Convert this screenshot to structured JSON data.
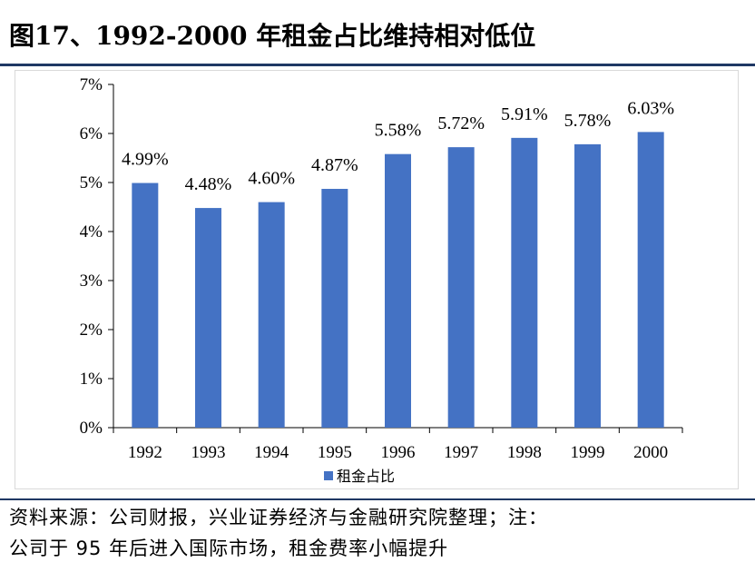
{
  "header": {
    "title": "图17、1992-2000 年租金占比维持相对低位"
  },
  "chart_data": {
    "type": "bar",
    "title": "",
    "categories": [
      "1992",
      "1993",
      "1994",
      "1995",
      "1996",
      "1997",
      "1998",
      "1999",
      "2000"
    ],
    "series": [
      {
        "name": "租金占比",
        "values": [
          4.99,
          4.48,
          4.6,
          4.87,
          5.58,
          5.72,
          5.91,
          5.78,
          6.03
        ],
        "data_labels": [
          "4.99%",
          "4.48%",
          "4.60%",
          "4.87%",
          "5.58%",
          "5.72%",
          "5.91%",
          "5.78%",
          "6.03%"
        ],
        "color": "#4472c4"
      }
    ],
    "ylim": [
      0,
      7
    ],
    "yticks": [
      "0%",
      "1%",
      "2%",
      "3%",
      "4%",
      "5%",
      "6%",
      "7%"
    ],
    "xlabel": "",
    "ylabel": "",
    "legend_position": "bottom",
    "grid": false
  },
  "footer": {
    "source_line1": "资料来源：公司财报，兴业证券经济与金融研究院整理；注：",
    "source_line2": "公司于 95 年后进入国际市场，租金费率小幅提升"
  },
  "colors": {
    "accent": "#1f3864",
    "bar": "#4472c4"
  }
}
